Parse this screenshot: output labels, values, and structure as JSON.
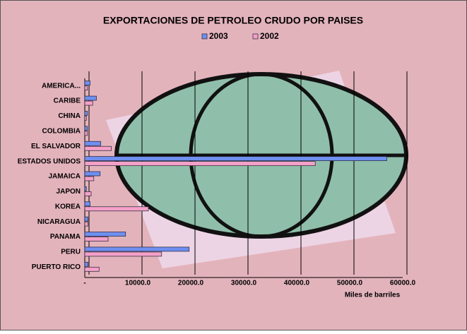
{
  "chart_data": {
    "type": "bar",
    "orientation": "horizontal",
    "title": "EXPORTACIONES DE PETROLEO CRUDO POR PAISES",
    "x_label": "Miles de barriles",
    "categories": [
      "AMERICA...",
      "CARIBE",
      "CHINA",
      "COLOMBIA",
      "EL SALVADOR",
      "ESTADOS UNIDOS",
      "JAMAICA",
      "JAPON",
      "KOREA",
      "NICARAGUA",
      "PANAMA",
      "PERU",
      "PUERTO RICO"
    ],
    "series": [
      {
        "name": "2003",
        "color": "#6f8ff0",
        "values": [
          1000,
          2200,
          500,
          500,
          3000,
          57000,
          2900,
          300,
          1000,
          600,
          7700,
          19700,
          600
        ]
      },
      {
        "name": "2002",
        "color": "#f4a0c8",
        "values": [
          500,
          1500,
          300,
          500,
          5000,
          43500,
          1700,
          1200,
          12000,
          600,
          4400,
          14500,
          2700
        ]
      }
    ],
    "xlim": [
      0,
      60000
    ],
    "xticks": [
      {
        "value": 0,
        "label": "-"
      },
      {
        "value": 10000,
        "label": "10000.0"
      },
      {
        "value": 20000,
        "label": "20000.0"
      },
      {
        "value": 30000,
        "label": "30000.0"
      },
      {
        "value": 40000,
        "label": "40000.0"
      },
      {
        "value": 50000,
        "label": "50000.0"
      },
      {
        "value": 60000,
        "label": "60000.0"
      }
    ],
    "grid": true,
    "legend": "top"
  }
}
